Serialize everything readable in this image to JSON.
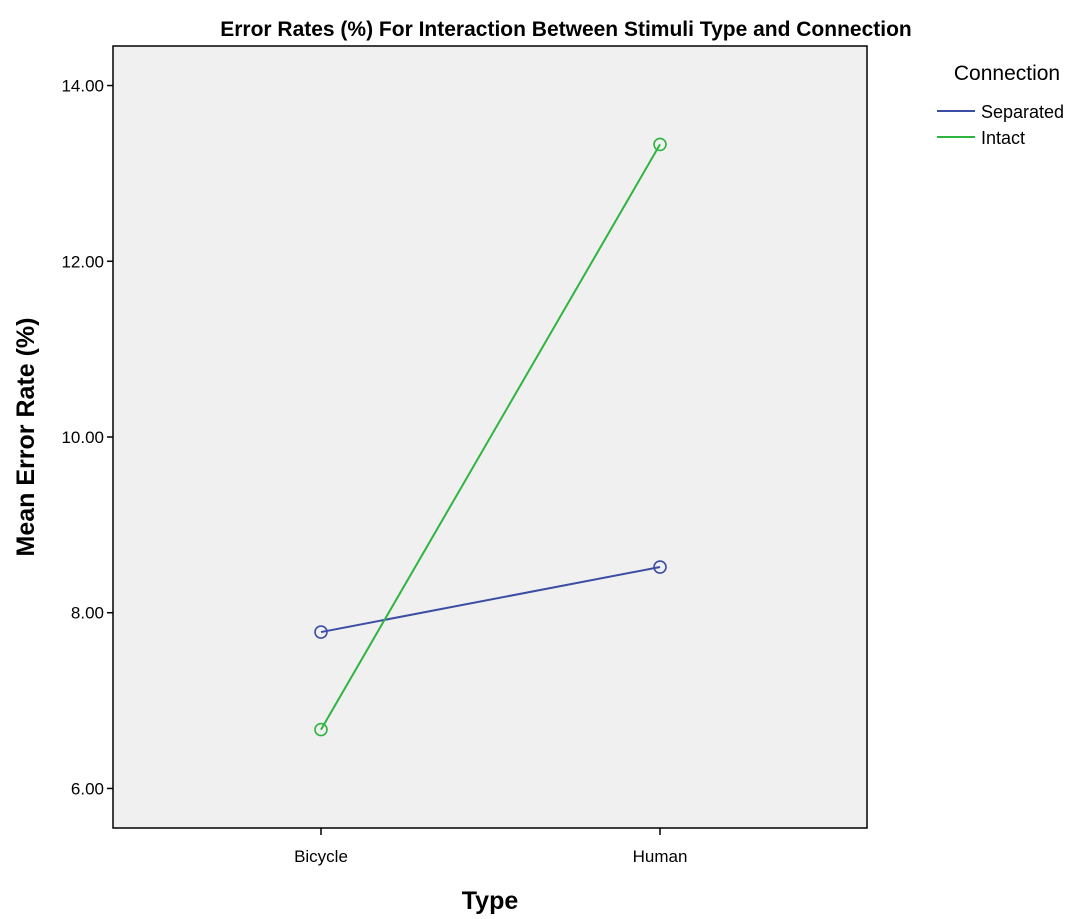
{
  "chart_data": {
    "type": "line",
    "title": "Error Rates (%) For Interaction Between Stimuli Type and Connection",
    "xlabel": "Type",
    "ylabel": "Mean Error Rate (%)",
    "categories": [
      "Bicycle",
      "Human"
    ],
    "ylim": [
      5.55,
      14.45
    ],
    "yticks": [
      6,
      8,
      10,
      12,
      14
    ],
    "ytick_labels": [
      "6.00",
      "8.00",
      "10.00",
      "12.00",
      "14.00"
    ],
    "grid": false,
    "legend": {
      "title": "Connection",
      "position": "top-right, outside plot"
    },
    "series": [
      {
        "name": "Separated",
        "values": [
          7.78,
          8.52
        ],
        "color": "#3c4ea3"
      },
      {
        "name": "Intact",
        "values": [
          6.67,
          13.33
        ],
        "color": "#2eb53f"
      }
    ],
    "plot_background": "#f0f0f0"
  }
}
